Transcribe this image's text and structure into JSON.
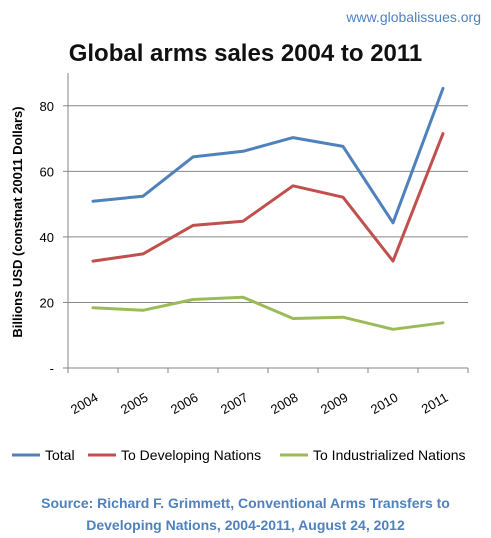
{
  "header": {
    "site": "www.globalissues.org",
    "title": "Global arms sales 2004 to 2011"
  },
  "chart_data": {
    "type": "line",
    "title": "Global arms sales 2004 to 2011",
    "ylabel": "Billions USD (constnat 20011 Dollars)",
    "xlabel": "",
    "x": [
      "2004",
      "2005",
      "2006",
      "2007",
      "2008",
      "2009",
      "2010",
      "2011"
    ],
    "ylim": [
      0,
      90
    ],
    "yticks": [
      0,
      20,
      40,
      60,
      80
    ],
    "ytick_labels": [
      "-",
      "20",
      "40",
      "60",
      "80"
    ],
    "grid": true,
    "legend_position": "bottom",
    "series": [
      {
        "name": "Total",
        "color": "#4f81bd",
        "values": [
          50.9,
          52.4,
          64.4,
          66.1,
          70.3,
          67.6,
          44.3,
          85.3
        ]
      },
      {
        "name": "To Developing Nations",
        "color": "#c0504d",
        "values": [
          32.6,
          34.8,
          43.5,
          44.8,
          55.6,
          52.1,
          32.6,
          71.5
        ]
      },
      {
        "name": "To Industrialized Nations",
        "color": "#9bbb59",
        "values": [
          18.4,
          17.6,
          20.9,
          21.6,
          15.1,
          15.5,
          11.8,
          13.8
        ]
      }
    ]
  },
  "footer": {
    "source_line1": "Source: Richard F. Grimmett, Conventional Arms Transfers to",
    "source_line2": "Developing Nations, 2004-2011, August 24, 2012"
  }
}
